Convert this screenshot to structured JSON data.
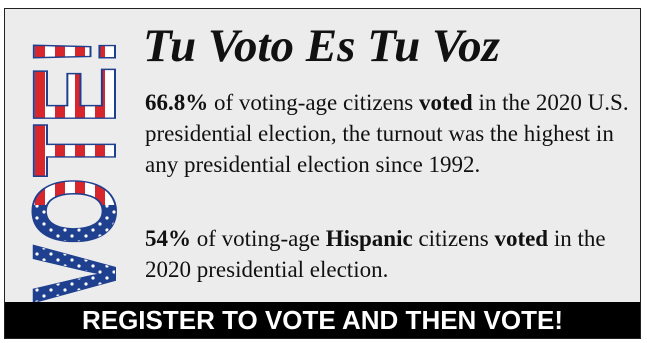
{
  "graphic_text": "VOTE!",
  "title": "Tu Voto Es Tu Voz",
  "paragraphs": [
    [
      {
        "text": "66.8%",
        "bold": true
      },
      {
        "text": " of voting-age citizens ",
        "bold": false
      },
      {
        "text": "voted",
        "bold": true
      },
      {
        "text": " in the 2020 U.S. presidential election, the turnout was the highest in any presidential election since 1992.",
        "bold": false
      }
    ],
    [
      {
        "text": "54%",
        "bold": true
      },
      {
        "text": " of voting-age ",
        "bold": false
      },
      {
        "text": "Hispanic",
        "bold": true
      },
      {
        "text": " citizens ",
        "bold": false
      },
      {
        "text": "voted",
        "bold": true
      },
      {
        "text": " in the 2020 presidential election.",
        "bold": false
      }
    ]
  ],
  "banner": "REGISTER TO VOTE AND THEN VOTE!"
}
